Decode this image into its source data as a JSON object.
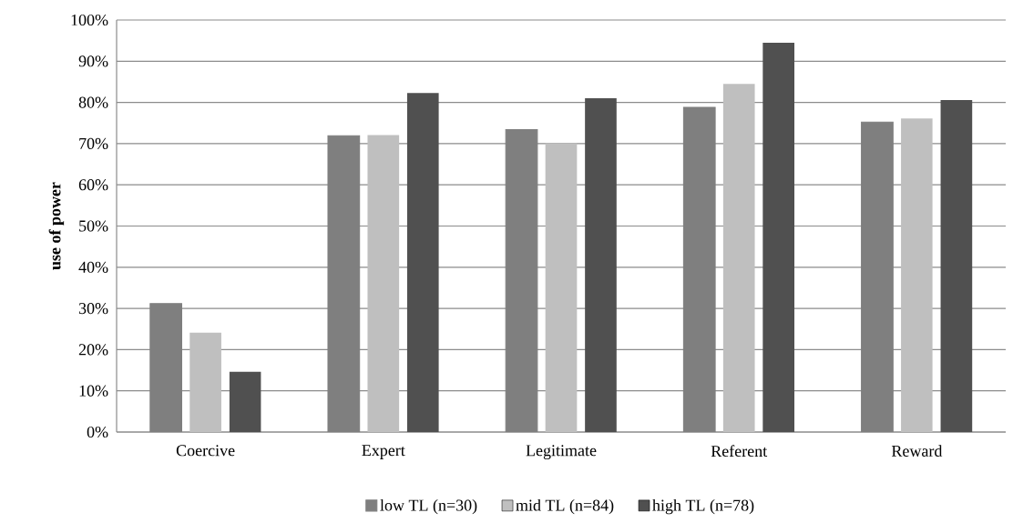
{
  "chart_data": {
    "type": "bar",
    "ylabel": "use of power",
    "categories": [
      "Coercive",
      "Expert",
      "Legitimate",
      "Referent",
      "Reward"
    ],
    "series": [
      {
        "name": "low TL (n=30)",
        "color": "#7f7f7f",
        "values": [
          31.2,
          71.9,
          73.4,
          78.8,
          75.2
        ]
      },
      {
        "name": "mid TL (n=84)",
        "color": "#bfbfbf",
        "values": [
          24.1,
          72.1,
          70.1,
          84.5,
          76.1
        ]
      },
      {
        "name": "high TL (n=78)",
        "color": "#505050",
        "values": [
          14.6,
          82.3,
          81.0,
          94.5,
          80.6
        ]
      }
    ],
    "ylim": [
      0,
      100
    ],
    "yticks": [
      {
        "value": 0,
        "label": "0%"
      },
      {
        "value": 10,
        "label": "10%"
      },
      {
        "value": 20,
        "label": "20%"
      },
      {
        "value": 30,
        "label": "30%"
      },
      {
        "value": 40,
        "label": "40%"
      },
      {
        "value": 50,
        "label": "50%"
      },
      {
        "value": 60,
        "label": "60%"
      },
      {
        "value": 70,
        "label": "70%"
      },
      {
        "value": 80,
        "label": "80%"
      },
      {
        "value": 90,
        "label": "90%"
      },
      {
        "value": 100,
        "label": "100%"
      }
    ],
    "grid": "y",
    "legend": "bottom"
  }
}
